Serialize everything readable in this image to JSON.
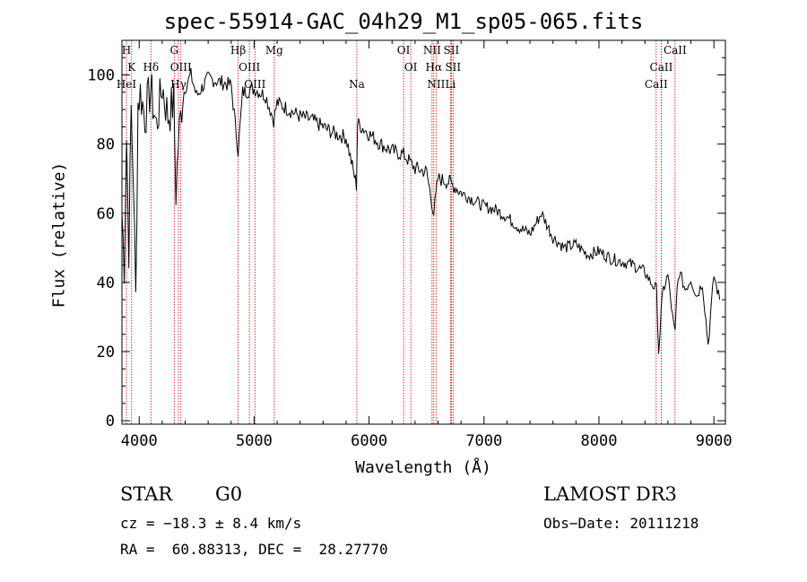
{
  "chart_data": {
    "type": "line",
    "title": "spec-55914-GAC_04h29_M1_sp05-065.fits",
    "xlabel": "Wavelength (Å)",
    "ylabel": "Flux (relative)",
    "xlim": [
      3850,
      9100
    ],
    "ylim": [
      -1,
      110
    ],
    "xticks": [
      4000,
      5000,
      6000,
      7000,
      8000,
      9000
    ],
    "yticks": [
      0,
      20,
      40,
      60,
      80,
      100
    ],
    "series": [
      {
        "name": "spectrum",
        "x": [
          3850,
          3870,
          3890,
          3910,
          3930,
          3950,
          3970,
          3990,
          4010,
          4050,
          4100,
          4150,
          4200,
          4250,
          4300,
          4320,
          4340,
          4380,
          4450,
          4500,
          4600,
          4700,
          4800,
          4861,
          4900,
          5000,
          5100,
          5170,
          5200,
          5300,
          5400,
          5500,
          5600,
          5700,
          5800,
          5890,
          5900,
          6000,
          6100,
          6200,
          6300,
          6400,
          6500,
          6563,
          6600,
          6700,
          6800,
          6900,
          7000,
          7100,
          7200,
          7300,
          7400,
          7500,
          7600,
          7700,
          7800,
          7900,
          8000,
          8100,
          8200,
          8300,
          8400,
          8450,
          8500,
          8520,
          8542,
          8560,
          8600,
          8640,
          8662,
          8680,
          8700,
          8750,
          8800,
          8850,
          8900,
          8950,
          9000,
          9050
        ],
        "y": [
          60,
          45,
          82,
          50,
          90,
          70,
          35,
          92,
          95,
          88,
          96,
          85,
          97,
          88,
          92,
          66,
          80,
          95,
          100,
          94,
          99,
          98,
          97,
          78,
          95,
          96,
          94,
          87,
          92,
          90,
          88,
          87,
          85,
          83,
          82,
          68,
          86,
          83,
          80,
          78,
          77,
          73,
          72,
          60,
          70,
          69,
          66,
          64,
          62,
          61,
          59,
          56,
          54,
          60,
          53,
          50,
          51,
          48,
          49,
          47,
          46,
          45,
          43,
          40,
          38,
          20,
          32,
          38,
          42,
          30,
          25,
          38,
          43,
          38,
          41,
          36,
          40,
          22,
          42,
          35
        ]
      }
    ],
    "line_markers": [
      {
        "label": "H",
        "wavelength": 3889,
        "row": 1
      },
      {
        "label": "K",
        "wavelength": 3934,
        "row": 2
      },
      {
        "label": "HeI",
        "wavelength": 3889,
        "row": 3
      },
      {
        "label": "Hδ",
        "wavelength": 4102,
        "row": 2
      },
      {
        "label": "G",
        "wavelength": 4305,
        "row": 1
      },
      {
        "label": "OIII",
        "wavelength": 4363,
        "row": 2
      },
      {
        "label": "Hγ",
        "wavelength": 4341,
        "row": 3
      },
      {
        "label": "Hβ",
        "wavelength": 4861,
        "row": 1
      },
      {
        "label": "OIII",
        "wavelength": 4959,
        "row": 2
      },
      {
        "label": "OIII",
        "wavelength": 5007,
        "row": 3
      },
      {
        "label": "Mg",
        "wavelength": 5175,
        "row": 1
      },
      {
        "label": "Na",
        "wavelength": 5893,
        "row": 3
      },
      {
        "label": "OI",
        "wavelength": 6300,
        "row": 1
      },
      {
        "label": "OI",
        "wavelength": 6363,
        "row": 2
      },
      {
        "label": "NII",
        "wavelength": 6548,
        "row": 1
      },
      {
        "label": "Hα",
        "wavelength": 6563,
        "row": 2
      },
      {
        "label": "NII",
        "wavelength": 6583,
        "row": 3
      },
      {
        "label": "SII",
        "wavelength": 6716,
        "row": 1
      },
      {
        "label": "SII",
        "wavelength": 6731,
        "row": 2
      },
      {
        "label": "Li",
        "wavelength": 6708,
        "row": 3
      },
      {
        "label": "CaII",
        "wavelength": 8662,
        "row": 1
      },
      {
        "label": "CaII",
        "wavelength": 8542,
        "row": 2
      },
      {
        "label": "CaII",
        "wavelength": 8498,
        "row": 3
      }
    ]
  },
  "info": {
    "object_class": "STAR",
    "subclass": "G0",
    "survey": "LAMOST DR3",
    "cz": "cz = −18.3 ± 8.4 km/s",
    "obs_date": "Obs−Date: 20111218",
    "coords": "RA =  60.88313, DEC =  28.27770"
  },
  "colors": {
    "spectrum": "#000000",
    "marker_line": "#cc0000",
    "axis": "#000000"
  }
}
